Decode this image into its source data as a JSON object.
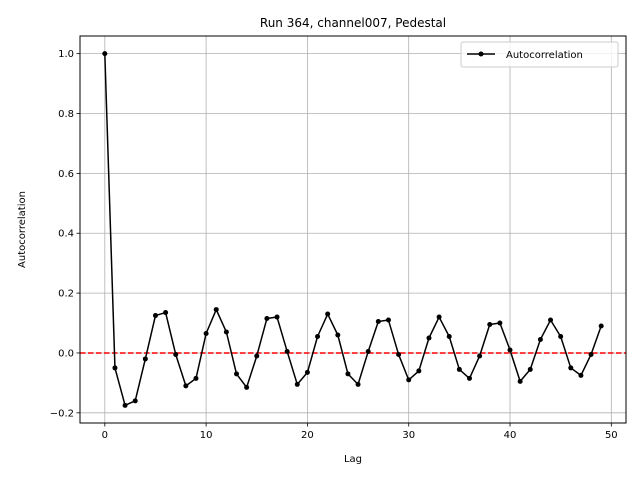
{
  "chart_data": {
    "type": "line",
    "title": "Run 364, channel007, Pedestal",
    "xlabel": "Lag",
    "ylabel": "Autocorrelation",
    "xlim": [
      -2.45,
      51.45
    ],
    "ylim": [
      -0.234,
      1.059
    ],
    "xticks": [
      0,
      10,
      20,
      30,
      40,
      50
    ],
    "yticks": [
      -0.2,
      0.0,
      0.2,
      0.4,
      0.6,
      0.8,
      1.0
    ],
    "xtick_labels": [
      "0",
      "10",
      "20",
      "30",
      "40",
      "50"
    ],
    "ytick_labels": [
      "−0.2",
      "0.0",
      "0.2",
      "0.4",
      "0.6",
      "0.8",
      "1.0"
    ],
    "grid": true,
    "legend_position": "top-right",
    "reference_line": {
      "y": 0.0,
      "color": "#ff0000",
      "style": "dashed"
    },
    "series": [
      {
        "name": "Autocorrelation",
        "color": "#000000",
        "marker": "dot",
        "x": [
          0,
          1,
          2,
          3,
          4,
          5,
          6,
          7,
          8,
          9,
          10,
          11,
          12,
          13,
          14,
          15,
          16,
          17,
          18,
          19,
          20,
          21,
          22,
          23,
          24,
          25,
          26,
          27,
          28,
          29,
          30,
          31,
          32,
          33,
          34,
          35,
          36,
          37,
          38,
          39,
          40,
          41,
          42,
          43,
          44,
          45,
          46,
          47,
          48,
          49
        ],
        "values": [
          1.0,
          -0.05,
          -0.175,
          -0.16,
          -0.02,
          0.125,
          0.135,
          -0.005,
          -0.11,
          -0.085,
          0.065,
          0.145,
          0.07,
          -0.07,
          -0.115,
          -0.01,
          0.115,
          0.12,
          0.005,
          -0.105,
          -0.065,
          0.055,
          0.13,
          0.06,
          -0.07,
          -0.105,
          0.005,
          0.105,
          0.11,
          -0.005,
          -0.09,
          -0.06,
          0.05,
          0.12,
          0.055,
          -0.055,
          -0.085,
          -0.01,
          0.095,
          0.1,
          0.01,
          -0.095,
          -0.055,
          0.045,
          0.11,
          0.055,
          -0.05,
          -0.075,
          -0.005,
          0.09
        ]
      }
    ]
  }
}
